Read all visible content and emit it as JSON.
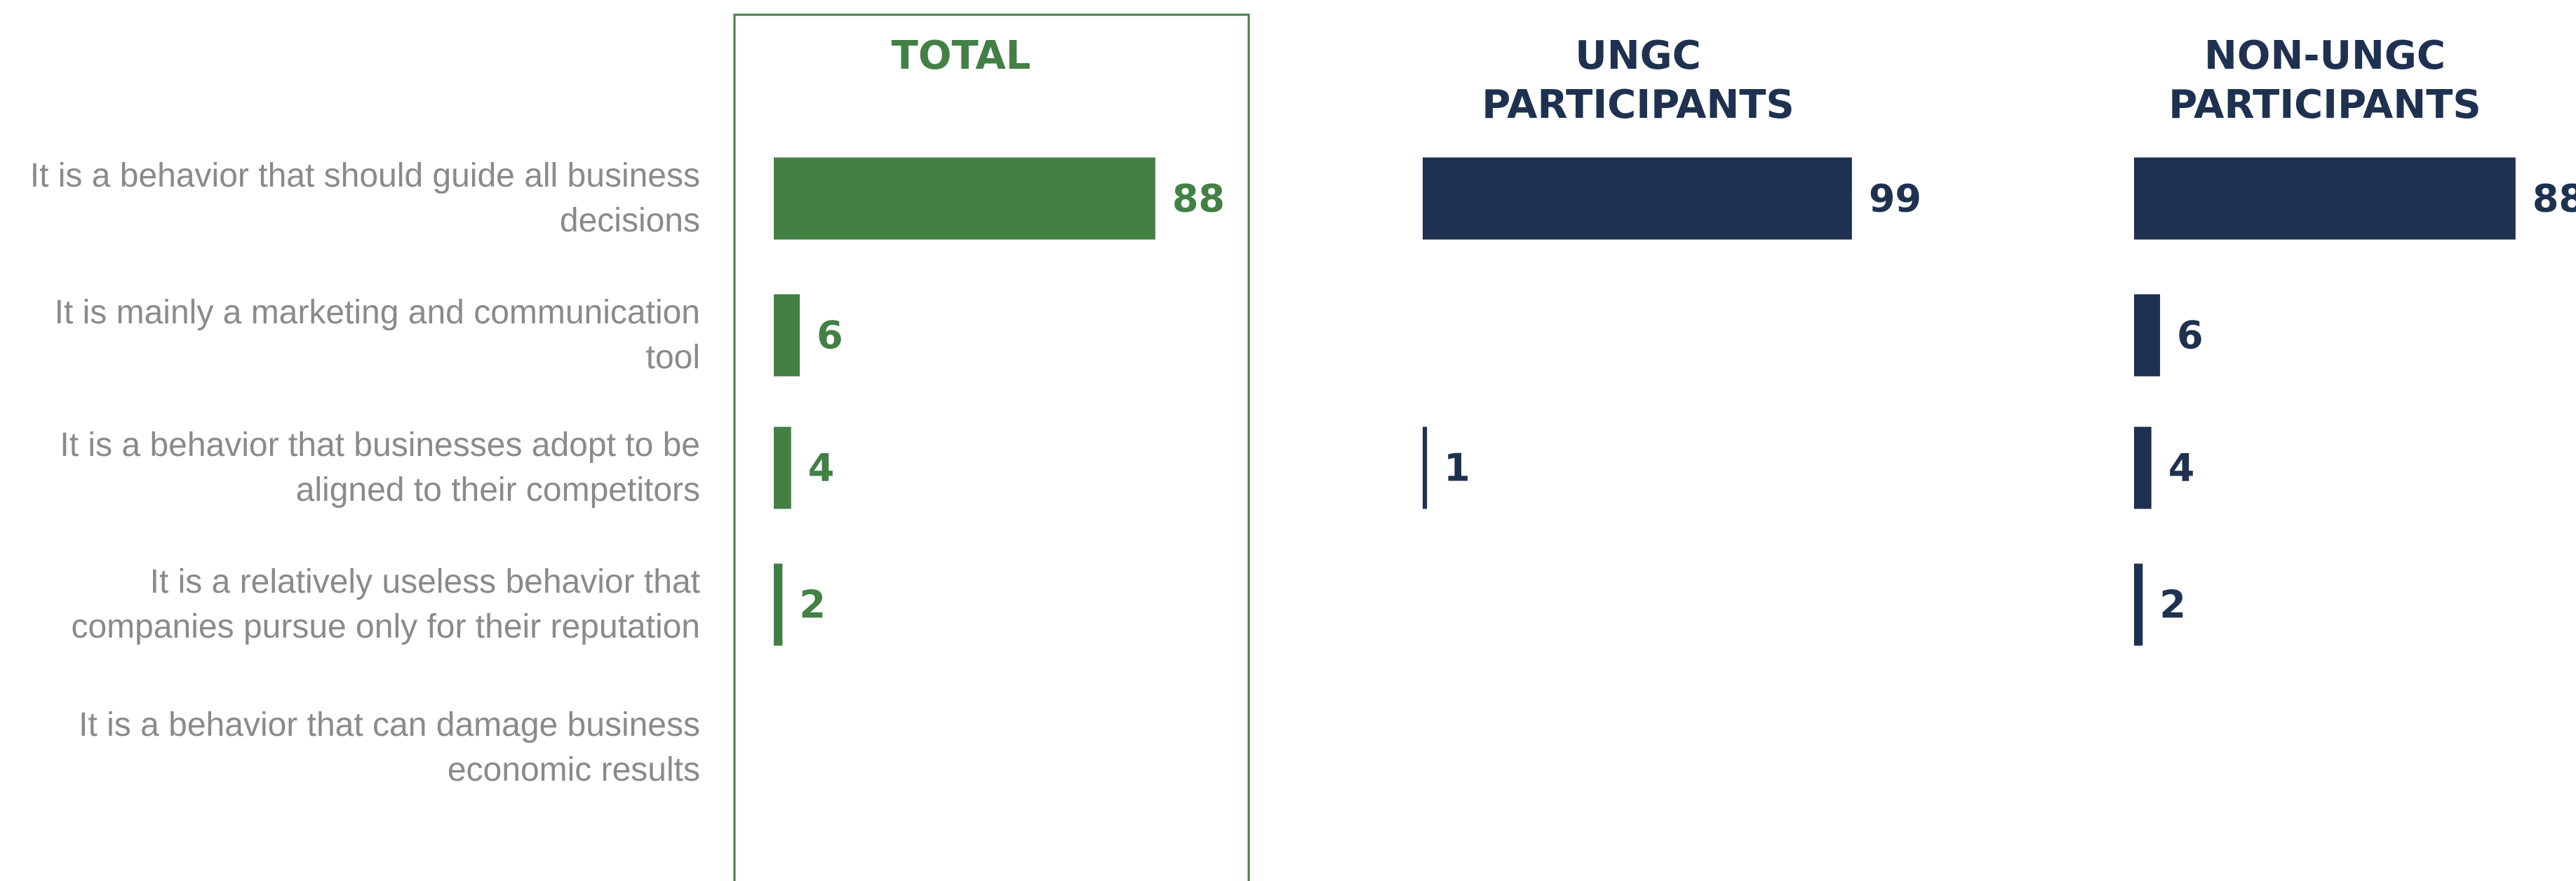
{
  "chart_data": {
    "type": "bar",
    "orientation": "horizontal",
    "categories": [
      "It is a behavior that should guide all business decisions",
      "It is mainly a marketing and communication tool",
      "It is a behavior that businesses adopt to be aligned to their competitors",
      "It is a relatively useless behavior that companies pursue only for their reputation",
      "It is a behavior that can damage business economic results"
    ],
    "xlim": [
      0,
      100
    ],
    "series": [
      {
        "name": "TOTAL",
        "color": "#428044",
        "values": [
          88,
          6,
          4,
          2,
          null
        ]
      },
      {
        "name": "UNGC PARTICIPANTS",
        "color": "#1f3150",
        "values": [
          99,
          null,
          1,
          null,
          null
        ]
      },
      {
        "name": "NON-UNGC PARTICIPANTS",
        "color": "#1f3150",
        "values": [
          88,
          6,
          4,
          2,
          null
        ]
      }
    ]
  }
}
